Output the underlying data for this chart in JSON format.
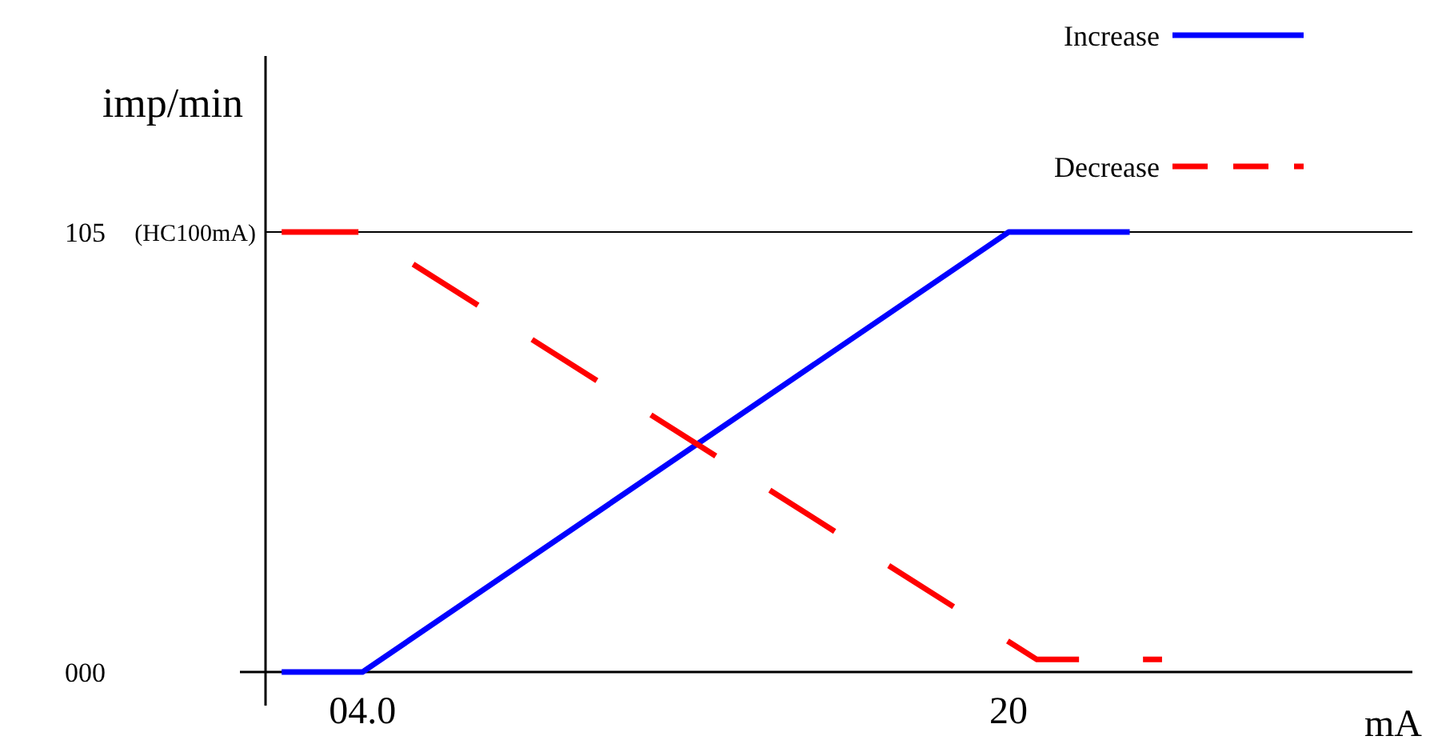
{
  "chart_data": {
    "type": "line",
    "xlabel": "mA",
    "ylabel": "imp/min",
    "xlim": [
      1.6,
      30
    ],
    "ylim": [
      -8,
      147
    ],
    "xticks": [
      {
        "value": 4,
        "label": "04.0"
      },
      20
    ],
    "yticks": [
      {
        "value": 0,
        "label": "000"
      },
      105
    ],
    "series": [
      {
        "name": "Increase",
        "color": "#0000ff",
        "line_style": "solid",
        "x": [
          2,
          4,
          20,
          23
        ],
        "values": [
          0,
          0,
          105,
          105
        ]
      },
      {
        "name": "Decrease",
        "color": "#ff0000",
        "line_style": "dashed",
        "x": [
          2,
          4,
          20.7,
          23.8
        ],
        "values": [
          105,
          105,
          3,
          3
        ]
      }
    ],
    "ref_lines": [
      {
        "axis": "y",
        "value": 105,
        "color": "#000000",
        "label": "(HC100mA)"
      }
    ],
    "legend": "top right",
    "marker": "none"
  }
}
